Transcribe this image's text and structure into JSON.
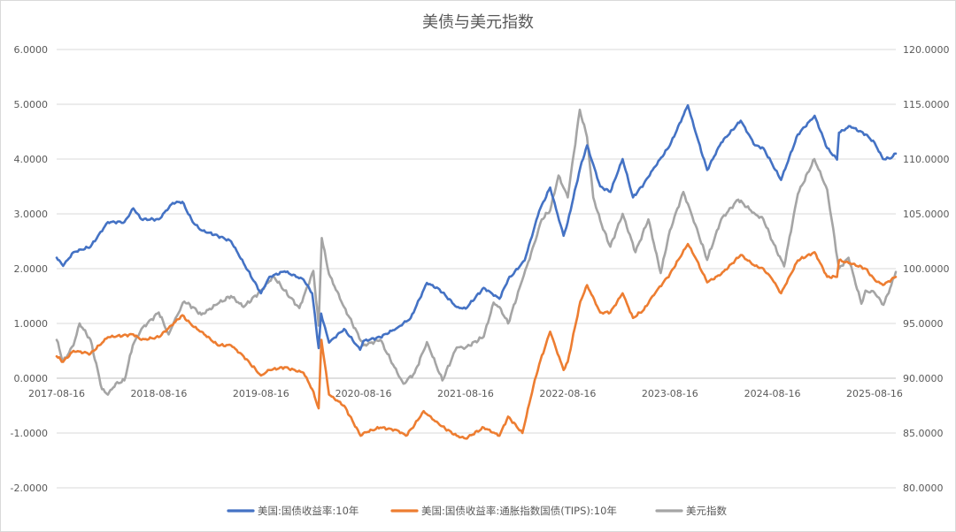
{
  "chart_data": {
    "type": "line",
    "title": "美债与美元指数",
    "xlabel": "",
    "ylabel": "",
    "x_tick_labels": [
      "2017-08-16",
      "2018-08-16",
      "2019-08-16",
      "2020-08-16",
      "2021-08-16",
      "2022-08-16",
      "2023-08-16",
      "2024-08-16",
      "2025-08-16"
    ],
    "y_left_ticks": [
      "6.0000",
      "5.0000",
      "4.0000",
      "3.0000",
      "2.0000",
      "1.0000",
      "0.0000",
      "-1.0000",
      "-2.0000"
    ],
    "y_right_ticks": [
      "120.0000",
      "115.0000",
      "110.0000",
      "105.0000",
      "100.0000",
      "95.0000",
      "90.0000",
      "85.0000",
      "80.0000"
    ],
    "ylim_left": [
      -2,
      6
    ],
    "ylim_right": [
      80,
      120
    ],
    "x_range": [
      "2017-08-16",
      "2025-10-31"
    ],
    "grid": true,
    "legend_position": "bottom",
    "series": [
      {
        "name": "美国:国债收益率:10年",
        "axis": "left",
        "color": "#4472c4",
        "points": [
          [
            "2017-08-16",
            2.2
          ],
          [
            "2017-09-08",
            2.05
          ],
          [
            "2017-10-15",
            2.3
          ],
          [
            "2017-12-15",
            2.4
          ],
          [
            "2018-02-15",
            2.85
          ],
          [
            "2018-04-15",
            2.85
          ],
          [
            "2018-05-17",
            3.1
          ],
          [
            "2018-06-15",
            2.9
          ],
          [
            "2018-08-16",
            2.9
          ],
          [
            "2018-10-05",
            3.2
          ],
          [
            "2018-11-08",
            3.22
          ],
          [
            "2018-12-15",
            2.85
          ],
          [
            "2019-01-15",
            2.7
          ],
          [
            "2019-03-15",
            2.6
          ],
          [
            "2019-05-01",
            2.5
          ],
          [
            "2019-06-15",
            2.1
          ],
          [
            "2019-08-16",
            1.55
          ],
          [
            "2019-09-15",
            1.85
          ],
          [
            "2019-11-08",
            1.95
          ],
          [
            "2020-01-15",
            1.8
          ],
          [
            "2020-02-15",
            1.55
          ],
          [
            "2020-03-09",
            0.55
          ],
          [
            "2020-03-18",
            1.18
          ],
          [
            "2020-04-15",
            0.65
          ],
          [
            "2020-06-08",
            0.9
          ],
          [
            "2020-08-04",
            0.52
          ],
          [
            "2020-08-16",
            0.68
          ],
          [
            "2020-10-15",
            0.75
          ],
          [
            "2020-12-15",
            0.92
          ],
          [
            "2021-02-01",
            1.1
          ],
          [
            "2021-03-31",
            1.74
          ],
          [
            "2021-05-15",
            1.62
          ],
          [
            "2021-07-15",
            1.3
          ],
          [
            "2021-08-16",
            1.27
          ],
          [
            "2021-10-20",
            1.65
          ],
          [
            "2021-12-15",
            1.45
          ],
          [
            "2022-01-15",
            1.8
          ],
          [
            "2022-03-15",
            2.15
          ],
          [
            "2022-05-06",
            3.05
          ],
          [
            "2022-06-14",
            3.48
          ],
          [
            "2022-08-01",
            2.6
          ],
          [
            "2022-08-16",
            2.85
          ],
          [
            "2022-09-30",
            3.85
          ],
          [
            "2022-10-24",
            4.25
          ],
          [
            "2022-12-10",
            3.5
          ],
          [
            "2023-01-15",
            3.4
          ],
          [
            "2023-02-28",
            4.0
          ],
          [
            "2023-04-06",
            3.3
          ],
          [
            "2023-05-15",
            3.55
          ],
          [
            "2023-06-15",
            3.8
          ],
          [
            "2023-08-16",
            4.25
          ],
          [
            "2023-10-19",
            4.98
          ],
          [
            "2023-11-15",
            4.5
          ],
          [
            "2023-12-27",
            3.8
          ],
          [
            "2024-02-15",
            4.3
          ],
          [
            "2024-04-25",
            4.7
          ],
          [
            "2024-06-15",
            4.25
          ],
          [
            "2024-07-15",
            4.2
          ],
          [
            "2024-08-16",
            3.9
          ],
          [
            "2024-09-16",
            3.62
          ],
          [
            "2024-11-15",
            4.45
          ],
          [
            "2025-01-14",
            4.79
          ],
          [
            "2025-02-28",
            4.2
          ],
          [
            "2025-04-04",
            3.99
          ],
          [
            "2025-04-11",
            4.48
          ],
          [
            "2025-05-21",
            4.6
          ],
          [
            "2025-07-15",
            4.45
          ],
          [
            "2025-08-16",
            4.3
          ],
          [
            "2025-09-15",
            4.0
          ],
          [
            "2025-10-15",
            4.02
          ],
          [
            "2025-10-31",
            4.1
          ]
        ]
      },
      {
        "name": "美国:国债收益率:通胀指数国债(TIPS):10年",
        "axis": "left",
        "color": "#ed7d31",
        "points": [
          [
            "2017-08-16",
            0.4
          ],
          [
            "2017-09-08",
            0.3
          ],
          [
            "2017-10-15",
            0.5
          ],
          [
            "2017-12-15",
            0.45
          ],
          [
            "2018-01-15",
            0.6
          ],
          [
            "2018-02-15",
            0.75
          ],
          [
            "2018-05-17",
            0.8
          ],
          [
            "2018-06-15",
            0.7
          ],
          [
            "2018-08-16",
            0.75
          ],
          [
            "2018-11-08",
            1.15
          ],
          [
            "2018-12-15",
            0.95
          ],
          [
            "2019-01-15",
            0.85
          ],
          [
            "2019-03-15",
            0.6
          ],
          [
            "2019-05-01",
            0.6
          ],
          [
            "2019-06-15",
            0.4
          ],
          [
            "2019-08-16",
            0.05
          ],
          [
            "2019-09-15",
            0.15
          ],
          [
            "2019-11-08",
            0.2
          ],
          [
            "2020-01-15",
            0.1
          ],
          [
            "2020-02-15",
            -0.2
          ],
          [
            "2020-03-09",
            -0.55
          ],
          [
            "2020-03-19",
            0.7
          ],
          [
            "2020-04-15",
            -0.3
          ],
          [
            "2020-06-08",
            -0.5
          ],
          [
            "2020-08-06",
            -1.05
          ],
          [
            "2020-08-16",
            -1.0
          ],
          [
            "2020-10-15",
            -0.9
          ],
          [
            "2020-12-15",
            -0.95
          ],
          [
            "2021-01-15",
            -1.05
          ],
          [
            "2021-02-15",
            -0.85
          ],
          [
            "2021-03-19",
            -0.6
          ],
          [
            "2021-05-15",
            -0.85
          ],
          [
            "2021-07-15",
            -1.05
          ],
          [
            "2021-08-16",
            -1.1
          ],
          [
            "2021-10-20",
            -0.9
          ],
          [
            "2021-12-15",
            -1.05
          ],
          [
            "2022-01-15",
            -0.7
          ],
          [
            "2022-03-07",
            -1.0
          ],
          [
            "2022-04-15",
            -0.15
          ],
          [
            "2022-05-06",
            0.25
          ],
          [
            "2022-06-14",
            0.85
          ],
          [
            "2022-08-01",
            0.15
          ],
          [
            "2022-08-16",
            0.3
          ],
          [
            "2022-09-30",
            1.4
          ],
          [
            "2022-10-24",
            1.7
          ],
          [
            "2022-12-10",
            1.2
          ],
          [
            "2023-01-15",
            1.2
          ],
          [
            "2023-02-28",
            1.55
          ],
          [
            "2023-04-06",
            1.1
          ],
          [
            "2023-05-15",
            1.25
          ],
          [
            "2023-06-15",
            1.5
          ],
          [
            "2023-08-16",
            1.9
          ],
          [
            "2023-10-19",
            2.45
          ],
          [
            "2023-11-15",
            2.2
          ],
          [
            "2023-12-27",
            1.75
          ],
          [
            "2024-02-15",
            1.9
          ],
          [
            "2024-04-25",
            2.25
          ],
          [
            "2024-06-15",
            2.05
          ],
          [
            "2024-07-15",
            2.0
          ],
          [
            "2024-08-16",
            1.8
          ],
          [
            "2024-09-16",
            1.55
          ],
          [
            "2024-11-15",
            2.15
          ],
          [
            "2025-01-14",
            2.3
          ],
          [
            "2025-02-28",
            1.85
          ],
          [
            "2025-04-04",
            1.85
          ],
          [
            "2025-04-11",
            2.15
          ],
          [
            "2025-05-21",
            2.1
          ],
          [
            "2025-07-15",
            2.0
          ],
          [
            "2025-08-16",
            1.8
          ],
          [
            "2025-09-15",
            1.7
          ],
          [
            "2025-10-15",
            1.8
          ],
          [
            "2025-10-31",
            1.85
          ]
        ]
      },
      {
        "name": "美元指数",
        "axis": "right",
        "color": "#a5a5a5",
        "points": [
          [
            "2017-08-16",
            93.5
          ],
          [
            "2017-09-08",
            91.5
          ],
          [
            "2017-10-15",
            93.0
          ],
          [
            "2017-11-06",
            95.0
          ],
          [
            "2017-12-15",
            93.5
          ],
          [
            "2018-01-25",
            89.0
          ],
          [
            "2018-02-15",
            88.5
          ],
          [
            "2018-03-15",
            89.5
          ],
          [
            "2018-04-15",
            89.8
          ],
          [
            "2018-05-15",
            93.0
          ],
          [
            "2018-06-15",
            94.5
          ],
          [
            "2018-08-16",
            96.0
          ],
          [
            "2018-09-20",
            94.0
          ],
          [
            "2018-10-15",
            95.5
          ],
          [
            "2018-11-15",
            97.0
          ],
          [
            "2018-12-15",
            96.5
          ],
          [
            "2019-01-15",
            95.8
          ],
          [
            "2019-03-15",
            96.8
          ],
          [
            "2019-05-01",
            97.5
          ],
          [
            "2019-06-15",
            96.5
          ],
          [
            "2019-08-16",
            98.0
          ],
          [
            "2019-09-30",
            99.3
          ],
          [
            "2019-11-08",
            98.0
          ],
          [
            "2019-12-31",
            96.4
          ],
          [
            "2020-02-19",
            99.8
          ],
          [
            "2020-03-09",
            94.8
          ],
          [
            "2020-03-20",
            102.8
          ],
          [
            "2020-04-15",
            99.5
          ],
          [
            "2020-06-08",
            96.5
          ],
          [
            "2020-08-16",
            93.0
          ],
          [
            "2020-10-15",
            93.5
          ],
          [
            "2020-12-15",
            90.5
          ],
          [
            "2021-01-06",
            89.5
          ],
          [
            "2021-02-15",
            90.5
          ],
          [
            "2021-03-31",
            93.3
          ],
          [
            "2021-05-25",
            89.8
          ],
          [
            "2021-07-15",
            92.8
          ],
          [
            "2021-08-16",
            92.8
          ],
          [
            "2021-10-20",
            93.8
          ],
          [
            "2021-11-24",
            96.9
          ],
          [
            "2021-12-15",
            96.5
          ],
          [
            "2022-01-15",
            95.0
          ],
          [
            "2022-03-07",
            99.0
          ],
          [
            "2022-04-28",
            103.0
          ],
          [
            "2022-05-15",
            104.5
          ],
          [
            "2022-06-14",
            105.3
          ],
          [
            "2022-07-14",
            108.5
          ],
          [
            "2022-08-16",
            106.5
          ],
          [
            "2022-09-28",
            114.5
          ],
          [
            "2022-10-24",
            112.0
          ],
          [
            "2022-11-15",
            106.5
          ],
          [
            "2022-12-15",
            104.0
          ],
          [
            "2023-01-15",
            102.0
          ],
          [
            "2023-02-28",
            105.0
          ],
          [
            "2023-04-15",
            101.5
          ],
          [
            "2023-05-31",
            104.5
          ],
          [
            "2023-07-14",
            99.6
          ],
          [
            "2023-08-16",
            103.5
          ],
          [
            "2023-10-03",
            107.0
          ],
          [
            "2023-11-15",
            104.0
          ],
          [
            "2023-12-27",
            100.8
          ],
          [
            "2024-02-15",
            104.5
          ],
          [
            "2024-04-16",
            106.3
          ],
          [
            "2024-06-15",
            105.0
          ],
          [
            "2024-07-15",
            104.5
          ],
          [
            "2024-08-16",
            102.5
          ],
          [
            "2024-09-27",
            100.2
          ],
          [
            "2024-11-15",
            106.8
          ],
          [
            "2025-01-13",
            110.0
          ],
          [
            "2025-02-28",
            107.2
          ],
          [
            "2025-04-11",
            100.0
          ],
          [
            "2025-05-15",
            101.0
          ],
          [
            "2025-06-30",
            96.8
          ],
          [
            "2025-07-15",
            98.0
          ],
          [
            "2025-08-16",
            97.8
          ],
          [
            "2025-09-17",
            96.7
          ],
          [
            "2025-10-15",
            98.5
          ],
          [
            "2025-10-31",
            99.7
          ]
        ]
      }
    ]
  }
}
